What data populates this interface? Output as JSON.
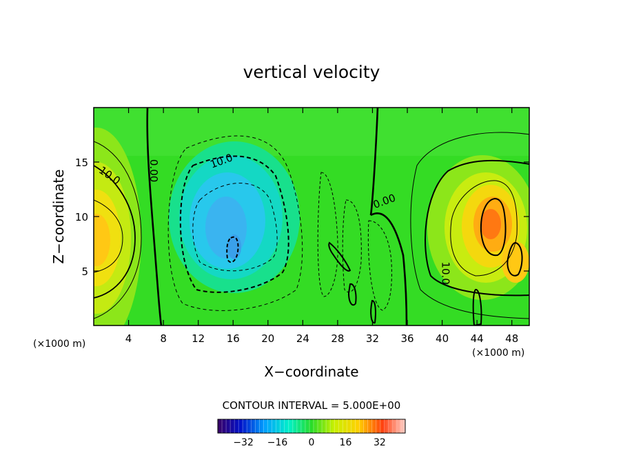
{
  "chart_data": {
    "type": "heatmap",
    "title": "vertical velocity",
    "xlabel": "X−coordinate",
    "ylabel": "Z−coordinate",
    "x_unit": "(×1000 m)",
    "x_unit_right": "(×1000 m)",
    "xlim": [
      0,
      50
    ],
    "ylim": [
      0,
      20
    ],
    "x_ticks": [
      4,
      8,
      12,
      16,
      20,
      24,
      28,
      32,
      36,
      40,
      44,
      48
    ],
    "y_ticks": [
      5,
      10,
      15
    ],
    "contour_interval_label": "CONTOUR INTERVAL = 5.000E+00",
    "colorbar": {
      "range": [
        -44,
        44
      ],
      "ticks": [
        -32,
        -16,
        0,
        16,
        32
      ]
    },
    "contour_labels": [
      {
        "text": "10.0",
        "x": 1.6,
        "y": 13.5
      },
      {
        "text": "0.00",
        "x": 6.5,
        "y": 14.2
      },
      {
        "text": "10.0",
        "x": 14.8,
        "y": 14.8
      },
      {
        "text": "0.00",
        "x": 33.5,
        "y": 11.1
      },
      {
        "text": "10.0",
        "x": 40.0,
        "y": 4.8
      }
    ],
    "features": [
      {
        "name": "updraft-left",
        "x": 1.0,
        "z": 8.0,
        "value": 22
      },
      {
        "name": "downdraft-center",
        "x": 16.0,
        "z": 9.5,
        "value": -22
      },
      {
        "name": "updraft-right",
        "x": 45.5,
        "z": 9.5,
        "value": 32
      }
    ]
  }
}
